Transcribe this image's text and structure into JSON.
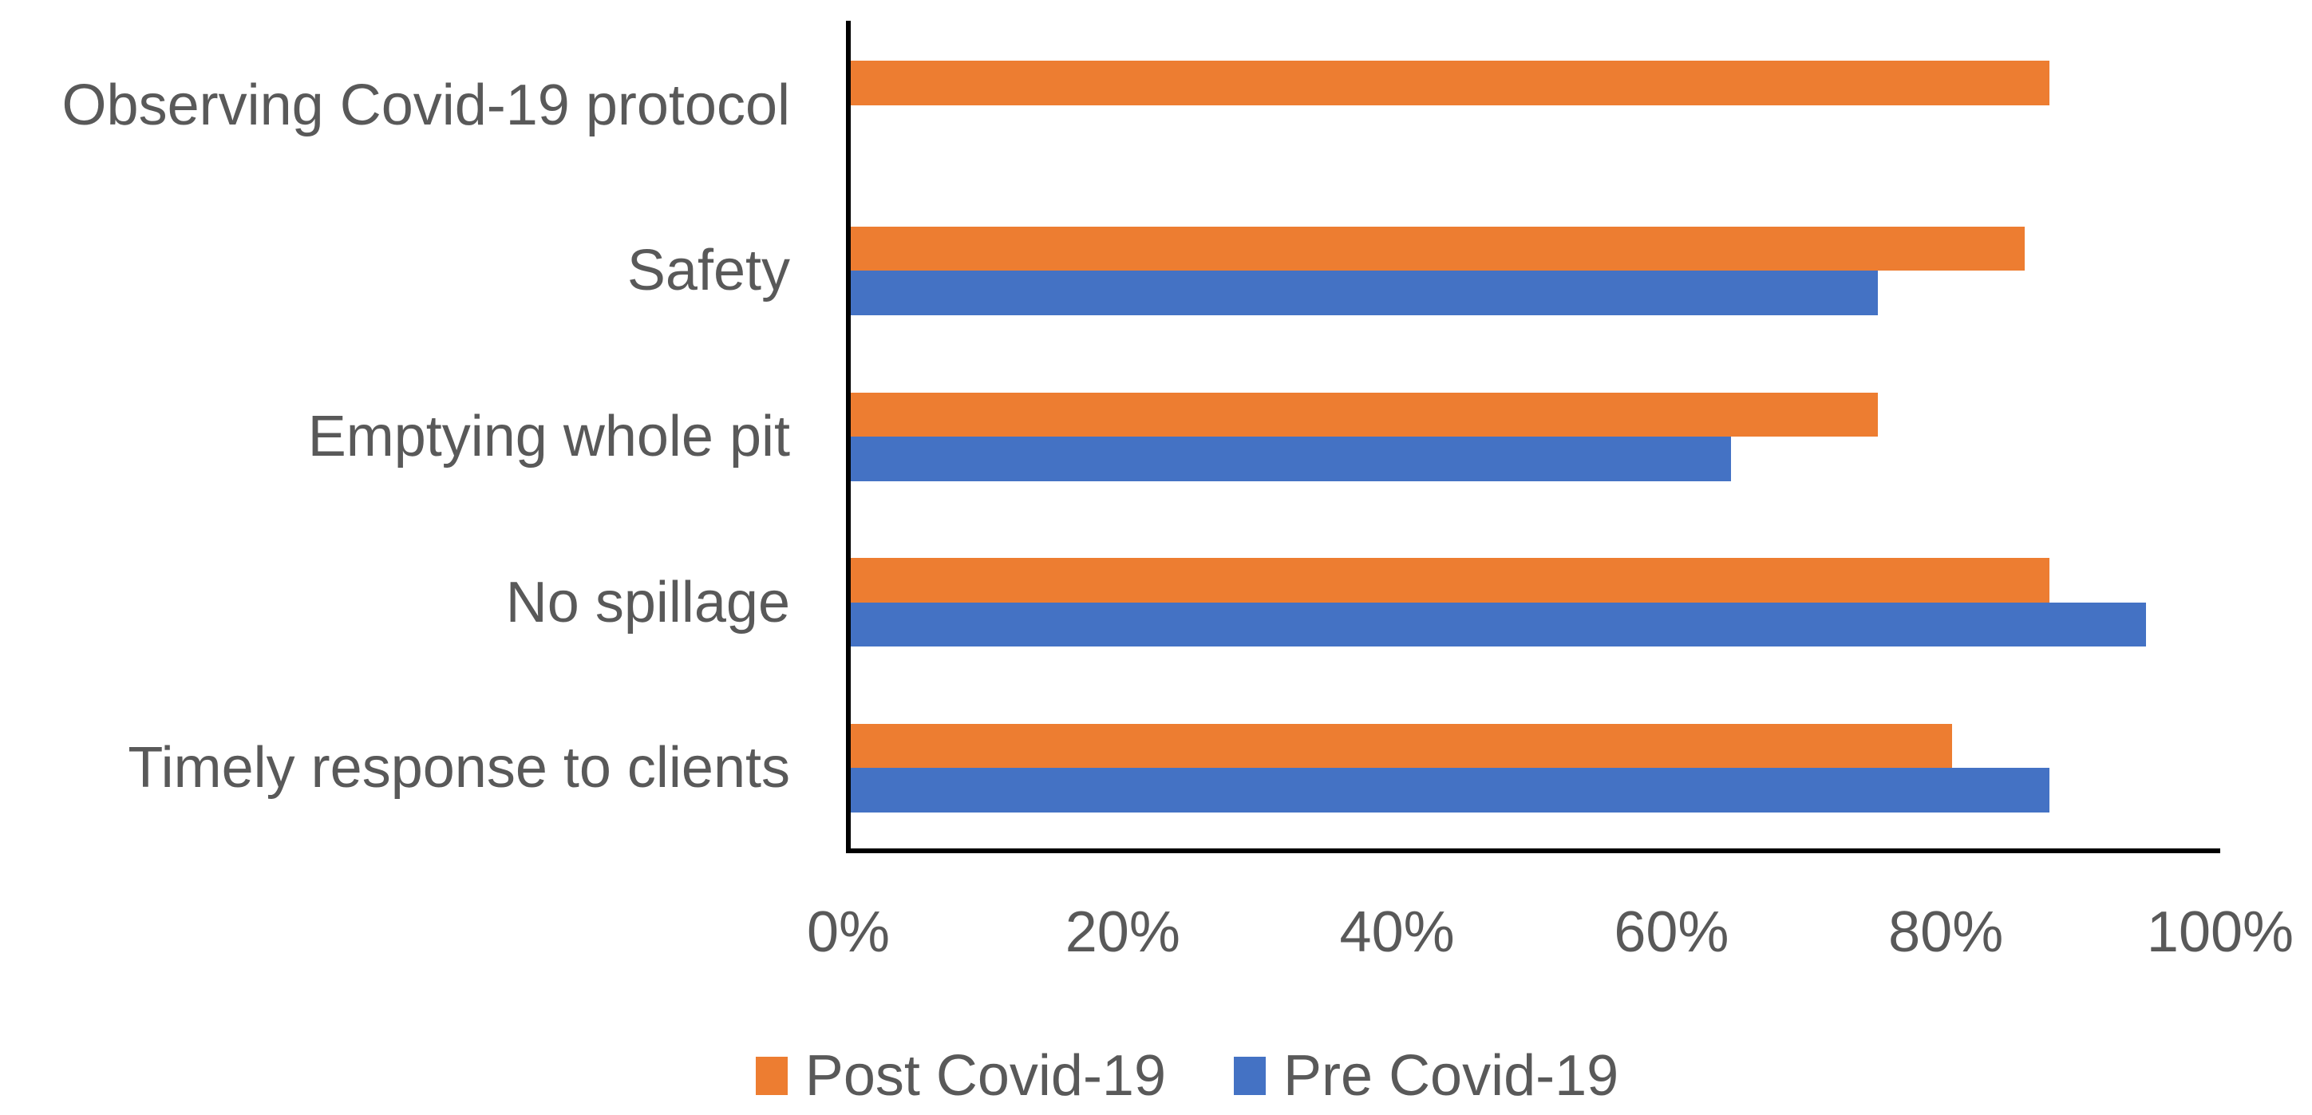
{
  "chart_data": {
    "type": "bar",
    "orientation": "horizontal",
    "title": "",
    "categories": [
      "Observing Covid-19 protocol",
      "Safety",
      "Emptying whole pit",
      "No spillage",
      "Timely response to clients"
    ],
    "series": [
      {
        "name": "Post Covid-19",
        "color": "#ED7D31",
        "values": [
          87.5,
          85.7,
          75,
          87.5,
          80.4
        ]
      },
      {
        "name": "Pre Covid-19",
        "color": "#4472C4",
        "values": [
          0,
          75,
          64.3,
          94.6,
          87.5
        ]
      }
    ],
    "x_axis": {
      "min": 0,
      "max": 100,
      "tick_step": 20,
      "ticks": [
        "0%",
        "20%",
        "40%",
        "60%",
        "80%",
        "100%"
      ],
      "unit": "percent"
    },
    "y_axis": {
      "label": ""
    },
    "legend_position": "bottom",
    "grid": false,
    "colors": {
      "axis_line": "#000000",
      "text": "#595959",
      "background": "#FFFFFF"
    }
  }
}
